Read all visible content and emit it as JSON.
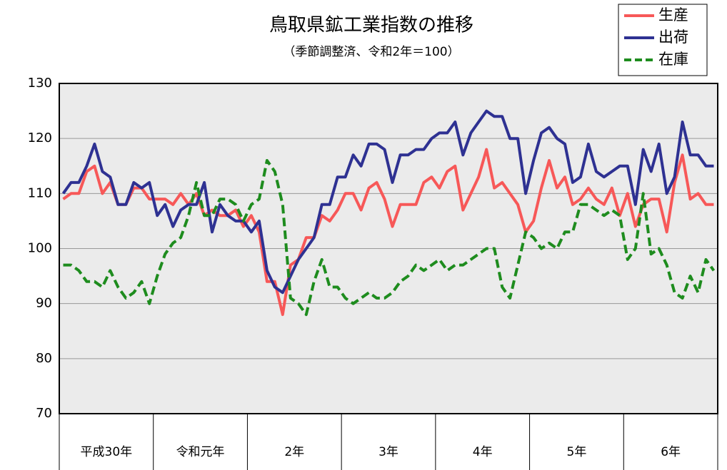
{
  "chart_data": {
    "type": "line",
    "title": "鳥取県鉱工業指数の推移",
    "subtitle": "（季節調整済、令和2年＝100）",
    "categories": [
      "平成30年",
      null,
      null,
      null,
      null,
      null,
      null,
      null,
      null,
      null,
      null,
      null,
      "令和元年",
      null,
      null,
      null,
      null,
      null,
      null,
      null,
      null,
      null,
      null,
      null,
      "2年",
      null,
      null,
      null,
      null,
      null,
      null,
      null,
      null,
      null,
      null,
      null,
      "3年",
      null,
      null,
      null,
      null,
      null,
      null,
      null,
      null,
      null,
      null,
      null,
      "4年",
      null,
      null,
      null,
      null,
      null,
      null,
      null,
      null,
      null,
      null,
      null,
      "5年",
      null,
      null,
      null,
      null,
      null,
      null,
      null,
      null,
      null,
      null,
      null,
      "6年",
      null,
      null,
      null,
      null,
      null,
      null,
      null,
      null,
      null,
      null,
      null
    ],
    "series": [
      {
        "name": "生産",
        "color": "#f75858",
        "dash": false,
        "values": [
          109,
          110,
          110,
          114,
          115,
          110,
          112,
          108,
          108,
          111,
          111,
          109,
          109,
          109,
          108,
          110,
          108,
          110,
          106,
          107,
          106,
          106,
          107,
          104,
          106,
          103,
          94,
          94,
          88,
          97,
          98,
          102,
          102,
          106,
          105,
          107,
          110,
          110,
          107,
          111,
          112,
          109,
          104,
          108,
          108,
          108,
          112,
          113,
          111,
          114,
          115,
          107,
          110,
          113,
          118,
          111,
          112,
          110,
          108,
          103,
          105,
          111,
          116,
          111,
          113,
          108,
          109,
          111,
          109,
          108,
          111,
          106,
          110,
          104,
          108,
          109,
          109,
          103,
          112,
          117,
          109,
          110,
          108,
          108
        ]
      },
      {
        "name": "出荷",
        "color": "#2e3192",
        "dash": false,
        "values": [
          110,
          112,
          112,
          115,
          119,
          114,
          113,
          108,
          108,
          112,
          111,
          112,
          106,
          108,
          104,
          107,
          108,
          108,
          112,
          103,
          108,
          106,
          105,
          105,
          103,
          105,
          96,
          93,
          92,
          95,
          98,
          100,
          102,
          108,
          108,
          113,
          113,
          117,
          115,
          119,
          119,
          118,
          112,
          117,
          117,
          118,
          118,
          120,
          121,
          121,
          123,
          117,
          121,
          123,
          125,
          124,
          124,
          120,
          120,
          110,
          116,
          121,
          122,
          120,
          119,
          112,
          113,
          119,
          114,
          113,
          114,
          115,
          115,
          108,
          118,
          114,
          119,
          110,
          113,
          123,
          117,
          117,
          115,
          115
        ]
      },
      {
        "name": "在庫",
        "color": "#1e8c1e",
        "dash": true,
        "values": [
          97,
          97,
          96,
          94,
          94,
          93,
          96,
          93,
          91,
          92,
          94,
          90,
          95,
          99,
          101,
          102,
          106,
          112,
          106,
          106,
          109,
          109,
          108,
          105,
          108,
          109,
          116,
          114,
          108,
          91,
          90,
          88,
          94,
          98,
          93,
          93,
          91,
          90,
          91,
          92,
          91,
          91,
          92,
          94,
          95,
          97,
          96,
          97,
          98,
          96,
          97,
          97,
          98,
          99,
          100,
          100,
          93,
          91,
          97,
          103,
          102,
          100,
          101,
          100,
          103,
          103,
          108,
          108,
          107,
          106,
          107,
          106,
          98,
          100,
          110,
          99,
          100,
          97,
          92,
          91,
          95,
          92,
          98,
          96
        ]
      }
    ],
    "ylim": [
      70,
      130
    ],
    "yticks": [
      70,
      80,
      90,
      100,
      110,
      120,
      130
    ],
    "grid": true
  }
}
